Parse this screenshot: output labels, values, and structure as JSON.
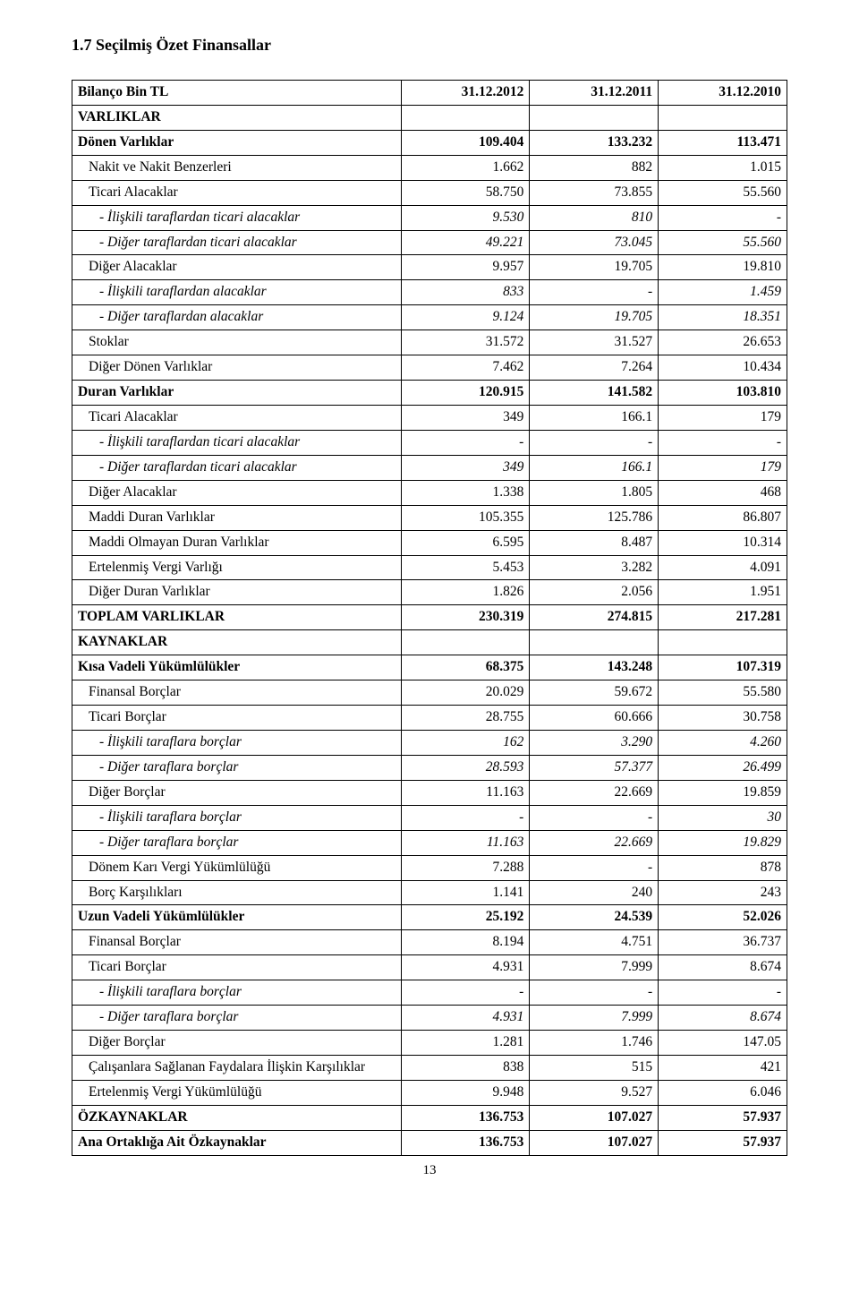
{
  "title": "1.7 Seçilmiş Özet Finansallar",
  "pageNumber": "13",
  "cols": {
    "c0_widthPct": 46,
    "c1_widthPct": 18,
    "c2_widthPct": 18,
    "c3_widthPct": 18
  },
  "rows": [
    {
      "label": "Bilanço Bin TL",
      "c1": "31.12.2012",
      "c2": "31.12.2011",
      "c3": "31.12.2010",
      "bold": true
    },
    {
      "label": "VARLIKLAR",
      "c1": "",
      "c2": "",
      "c3": "",
      "bold": true
    },
    {
      "label": "Dönen Varlıklar",
      "c1": "109.404",
      "c2": "133.232",
      "c3": "113.471",
      "bold": true
    },
    {
      "label": "Nakit ve Nakit Benzerleri",
      "c1": "1.662",
      "c2": "882",
      "c3": "1.015",
      "indent": 1
    },
    {
      "label": "Ticari Alacaklar",
      "c1": "58.750",
      "c2": "73.855",
      "c3": "55.560",
      "indent": 1
    },
    {
      "label": "- İlişkili taraflardan ticari alacaklar",
      "c1": "9.530",
      "c2": "810",
      "c3": "-",
      "indent": 2,
      "italic": true
    },
    {
      "label": "- Diğer taraflardan ticari alacaklar",
      "c1": "49.221",
      "c2": "73.045",
      "c3": "55.560",
      "indent": 2,
      "italic": true
    },
    {
      "label": "Diğer Alacaklar",
      "c1": "9.957",
      "c2": "19.705",
      "c3": "19.810",
      "indent": 1
    },
    {
      "label": "- İlişkili taraflardan alacaklar",
      "c1": "833",
      "c2": "-",
      "c3": "1.459",
      "indent": 2,
      "italic": true
    },
    {
      "label": "- Diğer taraflardan alacaklar",
      "c1": "9.124",
      "c2": "19.705",
      "c3": "18.351",
      "indent": 2,
      "italic": true
    },
    {
      "label": "Stoklar",
      "c1": "31.572",
      "c2": "31.527",
      "c3": "26.653",
      "indent": 1
    },
    {
      "label": "Diğer Dönen Varlıklar",
      "c1": "7.462",
      "c2": "7.264",
      "c3": "10.434",
      "indent": 1
    },
    {
      "label": "Duran Varlıklar",
      "c1": "120.915",
      "c2": "141.582",
      "c3": "103.810",
      "bold": true
    },
    {
      "label": "Ticari Alacaklar",
      "c1": "349",
      "c2": "166.1",
      "c3": "179",
      "indent": 1
    },
    {
      "label": "- İlişkili taraflardan ticari alacaklar",
      "c1": "-",
      "c2": "-",
      "c3": "-",
      "indent": 2,
      "italic": true
    },
    {
      "label": "- Diğer taraflardan ticari alacaklar",
      "c1": "349",
      "c2": "166.1",
      "c3": "179",
      "indent": 2,
      "italic": true
    },
    {
      "label": "Diğer Alacaklar",
      "c1": "1.338",
      "c2": "1.805",
      "c3": "468",
      "indent": 1
    },
    {
      "label": "Maddi Duran Varlıklar",
      "c1": "105.355",
      "c2": "125.786",
      "c3": "86.807",
      "indent": 1
    },
    {
      "label": "Maddi Olmayan Duran Varlıklar",
      "c1": "6.595",
      "c2": "8.487",
      "c3": "10.314",
      "indent": 1
    },
    {
      "label": "Ertelenmiş Vergi Varlığı",
      "c1": "5.453",
      "c2": "3.282",
      "c3": "4.091",
      "indent": 1
    },
    {
      "label": "Diğer Duran Varlıklar",
      "c1": "1.826",
      "c2": "2.056",
      "c3": "1.951",
      "indent": 1
    },
    {
      "label": "TOPLAM VARLIKLAR",
      "c1": "230.319",
      "c2": "274.815",
      "c3": "217.281",
      "bold": true
    },
    {
      "label": "KAYNAKLAR",
      "c1": "",
      "c2": "",
      "c3": "",
      "bold": true
    },
    {
      "label": "Kısa Vadeli Yükümlülükler",
      "c1": "68.375",
      "c2": "143.248",
      "c3": "107.319",
      "bold": true
    },
    {
      "label": "Finansal Borçlar",
      "c1": "20.029",
      "c2": "59.672",
      "c3": "55.580",
      "indent": 1
    },
    {
      "label": "Ticari Borçlar",
      "c1": "28.755",
      "c2": "60.666",
      "c3": "30.758",
      "indent": 1
    },
    {
      "label": "- İlişkili taraflara borçlar",
      "c1": "162",
      "c2": "3.290",
      "c3": "4.260",
      "indent": 2,
      "italic": true
    },
    {
      "label": "- Diğer taraflara borçlar",
      "c1": "28.593",
      "c2": "57.377",
      "c3": "26.499",
      "indent": 2,
      "italic": true
    },
    {
      "label": "Diğer Borçlar",
      "c1": "11.163",
      "c2": "22.669",
      "c3": "19.859",
      "indent": 1
    },
    {
      "label": "- İlişkili taraflara borçlar",
      "c1": "-",
      "c2": "-",
      "c3": "30",
      "indent": 2,
      "italic": true
    },
    {
      "label": "- Diğer taraflara borçlar",
      "c1": "11.163",
      "c2": "22.669",
      "c3": "19.829",
      "indent": 2,
      "italic": true
    },
    {
      "label": "Dönem Karı Vergi Yükümlülüğü",
      "c1": "7.288",
      "c2": "-",
      "c3": "878",
      "indent": 1
    },
    {
      "label": "Borç Karşılıkları",
      "c1": "1.141",
      "c2": "240",
      "c3": "243",
      "indent": 1
    },
    {
      "label": "Uzun Vadeli Yükümlülükler",
      "c1": "25.192",
      "c2": "24.539",
      "c3": "52.026",
      "bold": true
    },
    {
      "label": "Finansal Borçlar",
      "c1": "8.194",
      "c2": "4.751",
      "c3": "36.737",
      "indent": 1
    },
    {
      "label": "Ticari Borçlar",
      "c1": "4.931",
      "c2": "7.999",
      "c3": "8.674",
      "indent": 1
    },
    {
      "label": "- İlişkili taraflara borçlar",
      "c1": "-",
      "c2": "-",
      "c3": "-",
      "indent": 2,
      "italic": true
    },
    {
      "label": "- Diğer taraflara borçlar",
      "c1": "4.931",
      "c2": "7.999",
      "c3": "8.674",
      "indent": 2,
      "italic": true
    },
    {
      "label": "Diğer Borçlar",
      "c1": "1.281",
      "c2": "1.746",
      "c3": "147.05",
      "indent": 1
    },
    {
      "label": "Çalışanlara Sağlanan Faydalara İlişkin Karşılıklar",
      "c1": "838",
      "c2": "515",
      "c3": "421",
      "indent": 1
    },
    {
      "label": "Ertelenmiş Vergi Yükümlülüğü",
      "c1": "9.948",
      "c2": "9.527",
      "c3": "6.046",
      "indent": 1
    },
    {
      "label": "ÖZKAYNAKLAR",
      "c1": "136.753",
      "c2": "107.027",
      "c3": "57.937",
      "bold": true
    },
    {
      "label": "Ana Ortaklığa Ait Özkaynaklar",
      "c1": "136.753",
      "c2": "107.027",
      "c3": "57.937",
      "bold": true
    }
  ]
}
